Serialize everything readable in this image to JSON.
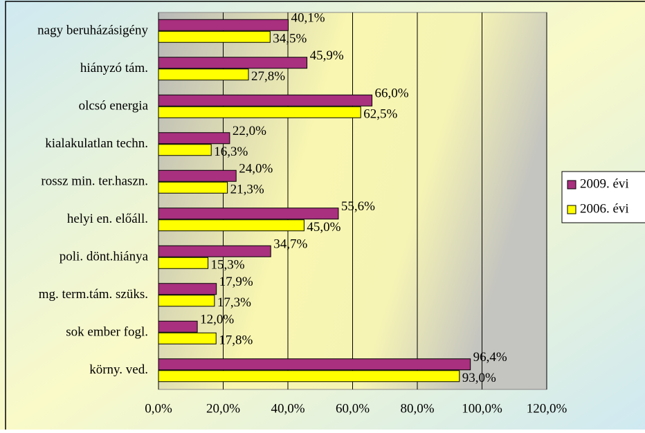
{
  "chart_data": {
    "type": "bar",
    "orientation": "horizontal",
    "categories": [
      "nagy beruházásigény",
      "hiányzó tám.",
      "olcsó energia",
      "kialakulatlan techn.",
      "rossz min. ter.haszn.",
      "helyi en. előáll.",
      "poli. dönt.hiánya",
      "mg. term.tám. szüks.",
      "sok ember fogl.",
      "körny. ved."
    ],
    "series": [
      {
        "name": "2009. évi",
        "color": "#a8307e",
        "values": [
          40.1,
          45.9,
          66.0,
          22.0,
          24.0,
          55.6,
          34.7,
          17.9,
          12.0,
          96.4
        ],
        "value_labels": [
          "40,1%",
          "45,9%",
          "66,0%",
          "22,0%",
          "24,0%",
          "55,6%",
          "34,7%",
          "17,9%",
          "12,0%",
          "96,4%"
        ]
      },
      {
        "name": "2006. évi",
        "color": "#ffff00",
        "values": [
          34.5,
          27.8,
          62.5,
          16.3,
          21.3,
          45.0,
          15.3,
          17.3,
          17.8,
          93.0
        ],
        "value_labels": [
          "34,5%",
          "27,8%",
          "62,5%",
          "16,3%",
          "21,3%",
          "45,0%",
          "15,3%",
          "17,3%",
          "17,8%",
          "93,0%"
        ]
      }
    ],
    "xlim": [
      0,
      120
    ],
    "xticks": [
      {
        "value": 0,
        "label": "0,0%"
      },
      {
        "value": 20,
        "label": "20,0%"
      },
      {
        "value": 40,
        "label": "40,0%"
      },
      {
        "value": 60,
        "label": "60,0%"
      },
      {
        "value": 80,
        "label": "80,0%"
      },
      {
        "value": 100,
        "label": "100,0%"
      },
      {
        "value": 120,
        "label": "120,0%"
      }
    ],
    "grid": true,
    "legend": "right"
  }
}
